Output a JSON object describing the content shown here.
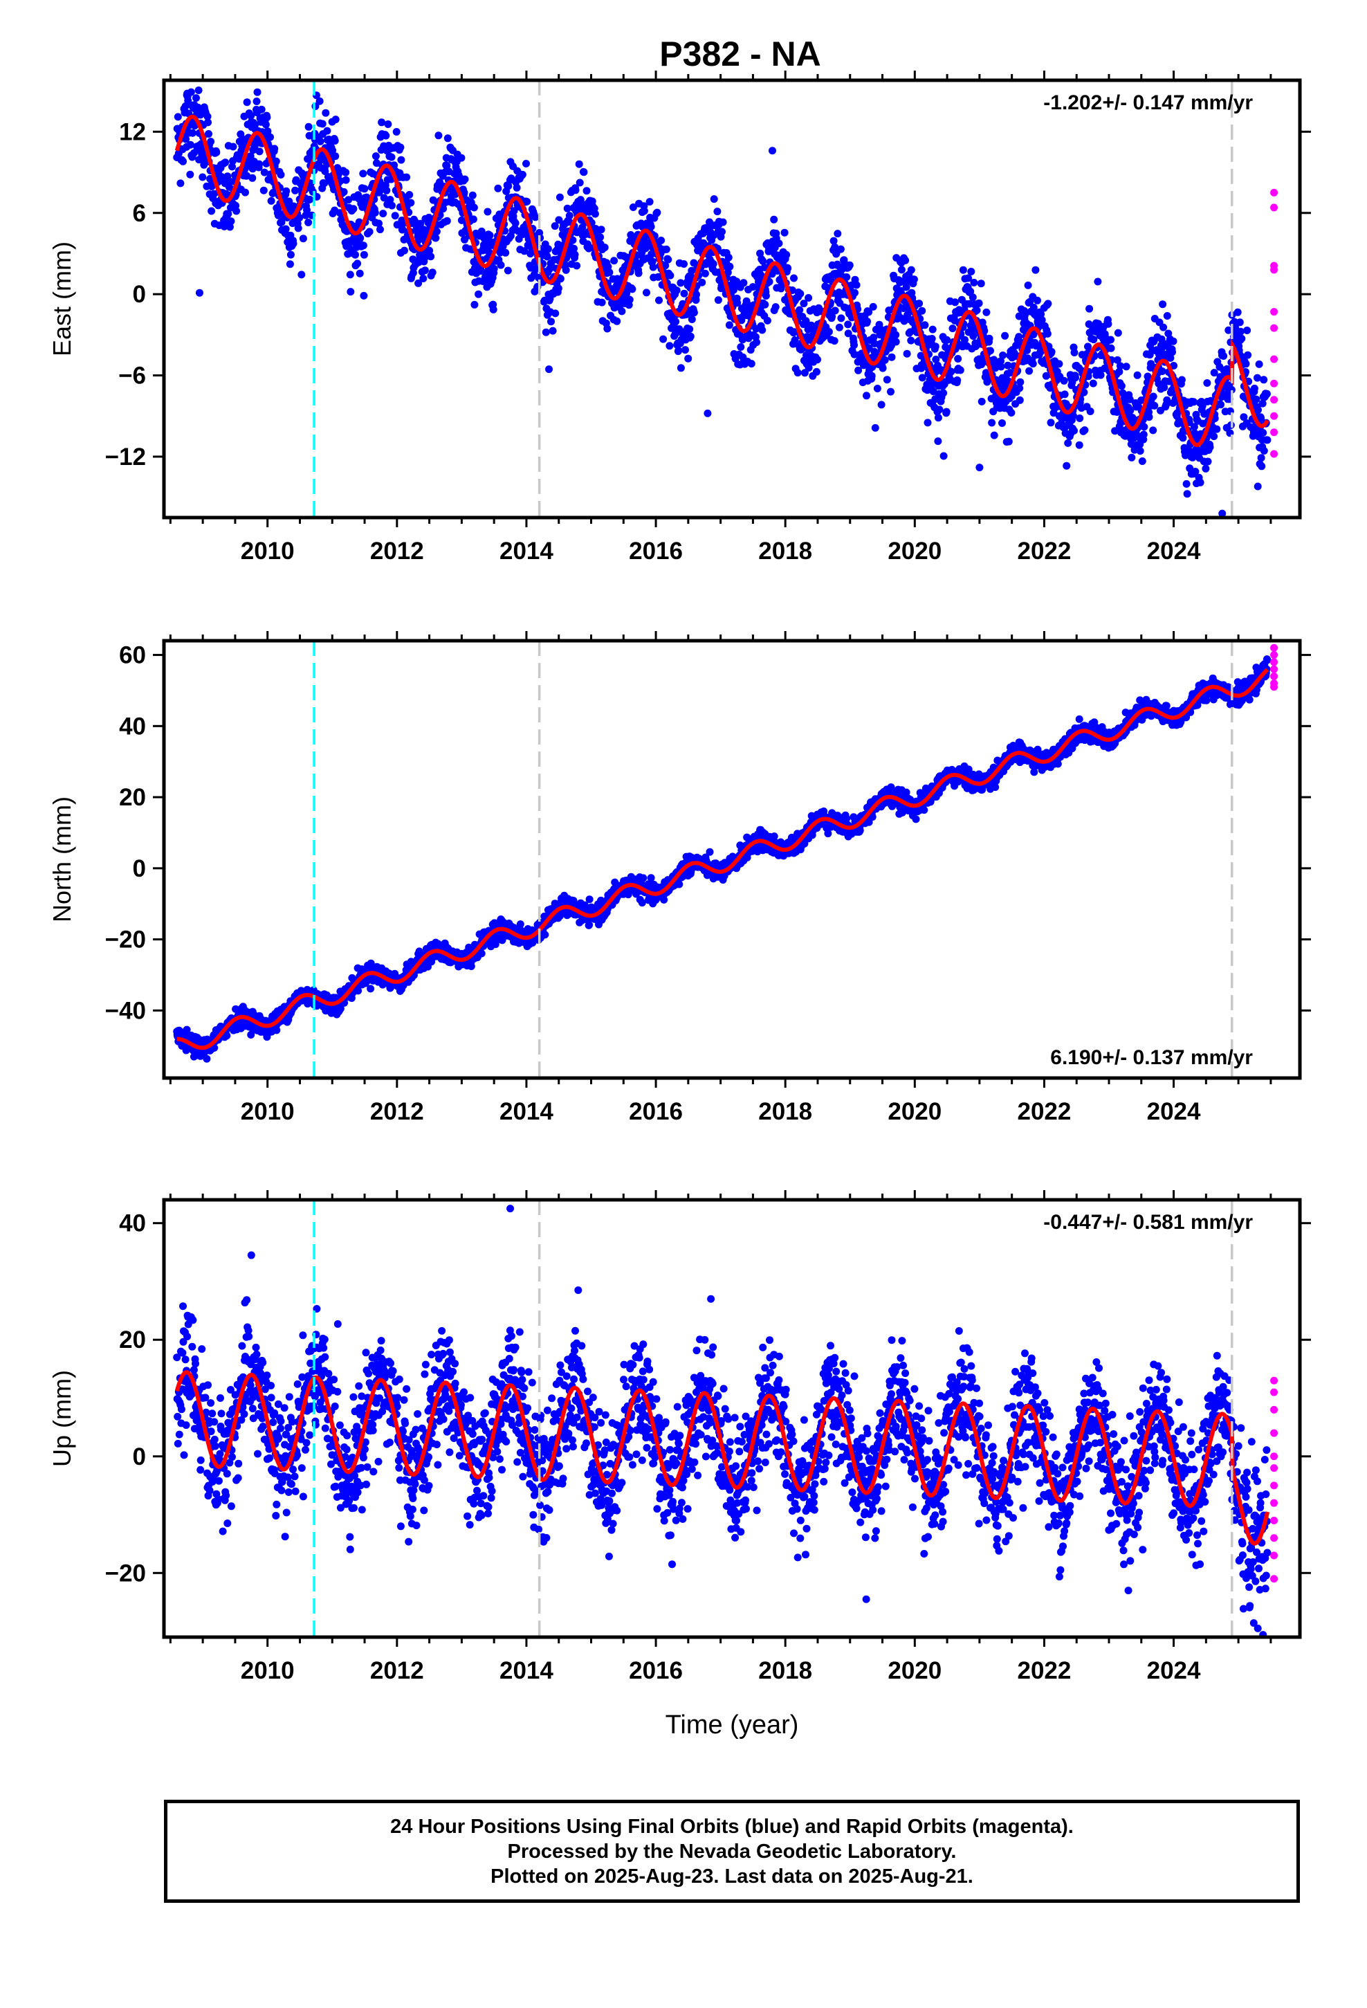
{
  "title": "P382 - NA",
  "xlabel": "Time (year)",
  "footer": {
    "lines": [
      "24 Hour Positions Using Final Orbits (blue) and Rapid Orbits (magenta).",
      "Processed by the Nevada Geodetic Laboratory.",
      "Plotted on 2025-Aug-23. Last data on 2025-Aug-21."
    ]
  },
  "colors": {
    "final_points": "#0000ff",
    "rapid_points": "#ff00ff",
    "model_curve": "#ff0000",
    "event_line": "#00ffff",
    "antenna_change_line": "#c8c8c8",
    "frame": "#000000"
  },
  "chart_data": [
    {
      "type": "scatter",
      "id": "east",
      "ylabel": "East (mm)",
      "rate_text": "-1.202+/- 0.147 mm/yr",
      "rate_position": "top-right",
      "xlim": [
        2008.4,
        2025.95
      ],
      "ylim": [
        -16.5,
        15.8
      ],
      "x_ticks": [
        2010,
        2012,
        2014,
        2016,
        2018,
        2020,
        2022,
        2024
      ],
      "y_ticks": [
        12,
        6,
        0,
        -6,
        -12
      ],
      "y_tick_labels": [
        "12",
        "6",
        "0",
        "−6",
        "−12"
      ],
      "event_lines": [
        {
          "x": 2010.72,
          "color": "cyan",
          "style": "dashed"
        }
      ],
      "equipment_lines": [
        {
          "x": 2014.2,
          "color": "gray",
          "style": "dashed"
        },
        {
          "x": 2024.9,
          "color": "gray",
          "style": "dashed"
        }
      ],
      "data_span": [
        2008.6,
        2025.45
      ],
      "model": {
        "offset_at_2008_6": 10.6,
        "rate_mm_per_yr": -1.202,
        "annual_amplitude": 2.8,
        "annual_peak_phase": 0.85,
        "step_at_2024_9": 2.6
      },
      "scatter_sd": 1.6,
      "rapid_points": [
        {
          "x": 2025.55,
          "y": 7.5
        },
        {
          "x": 2025.55,
          "y": 6.4
        },
        {
          "x": 2025.55,
          "y": 2.1
        },
        {
          "x": 2025.55,
          "y": 1.8
        },
        {
          "x": 2025.55,
          "y": -1.3
        },
        {
          "x": 2025.55,
          "y": -2.5
        },
        {
          "x": 2025.55,
          "y": -4.8
        },
        {
          "x": 2025.55,
          "y": -6.6
        },
        {
          "x": 2025.55,
          "y": -7.8
        },
        {
          "x": 2025.55,
          "y": -9.0
        },
        {
          "x": 2025.55,
          "y": -10.2
        },
        {
          "x": 2025.55,
          "y": -11.8
        }
      ],
      "outliers": [
        {
          "x": 2008.95,
          "y": 0.1
        },
        {
          "x": 2017.8,
          "y": 10.6
        },
        {
          "x": 2016.8,
          "y": -8.8
        },
        {
          "x": 2024.75,
          "y": -16.2
        },
        {
          "x": 2025.3,
          "y": -14.2
        },
        {
          "x": 2021.0,
          "y": -12.8
        }
      ]
    },
    {
      "type": "scatter",
      "id": "north",
      "ylabel": "North (mm)",
      "rate_text": "6.190+/- 0.137 mm/yr",
      "rate_position": "bottom-right",
      "xlim": [
        2008.4,
        2025.95
      ],
      "ylim": [
        -59,
        64
      ],
      "x_ticks": [
        2010,
        2012,
        2014,
        2016,
        2018,
        2020,
        2022,
        2024
      ],
      "y_ticks": [
        60,
        40,
        20,
        0,
        -20,
        -40
      ],
      "y_tick_labels": [
        "60",
        "40",
        "20",
        "0",
        "−20",
        "−40"
      ],
      "event_lines": [
        {
          "x": 2010.72,
          "color": "cyan",
          "style": "dashed"
        }
      ],
      "equipment_lines": [
        {
          "x": 2014.2,
          "color": "gray",
          "style": "dashed"
        },
        {
          "x": 2024.9,
          "color": "gray",
          "style": "dashed"
        }
      ],
      "data_span": [
        2008.6,
        2025.45
      ],
      "model": {
        "offset_at_2008_6": -50.5,
        "rate_mm_per_yr": 6.19,
        "annual_amplitude": 2.6,
        "annual_peak_phase": 0.55,
        "step_at_2024_9": 0
      },
      "scatter_sd": 1.3,
      "rapid_points": [
        {
          "x": 2025.55,
          "y": 62
        },
        {
          "x": 2025.55,
          "y": 60
        },
        {
          "x": 2025.55,
          "y": 58
        },
        {
          "x": 2025.55,
          "y": 56
        },
        {
          "x": 2025.55,
          "y": 54
        },
        {
          "x": 2025.55,
          "y": 52
        },
        {
          "x": 2025.55,
          "y": 51
        }
      ],
      "outliers": []
    },
    {
      "type": "scatter",
      "id": "up",
      "ylabel": "Up (mm)",
      "rate_text": "-0.447+/- 0.581 mm/yr",
      "rate_position": "top-right",
      "xlim": [
        2008.4,
        2025.95
      ],
      "ylim": [
        -31,
        44
      ],
      "x_ticks": [
        2010,
        2012,
        2014,
        2016,
        2018,
        2020,
        2022,
        2024
      ],
      "y_ticks": [
        40,
        20,
        0,
        -20
      ],
      "y_tick_labels": [
        "40",
        "20",
        "0",
        "−20"
      ],
      "event_lines": [
        {
          "x": 2010.72,
          "color": "cyan",
          "style": "dashed"
        }
      ],
      "equipment_lines": [
        {
          "x": 2014.2,
          "color": "gray",
          "style": "dashed"
        },
        {
          "x": 2024.9,
          "color": "gray",
          "style": "dashed"
        }
      ],
      "data_span": [
        2008.6,
        2025.45
      ],
      "model": {
        "offset_at_2008_6": 6.5,
        "rate_mm_per_yr": -0.447,
        "annual_amplitude": 8.0,
        "annual_peak_phase": 0.75,
        "step_at_2024_9": -6.0
      },
      "scatter_sd": 5.0,
      "rapid_points": [
        {
          "x": 2025.55,
          "y": 13
        },
        {
          "x": 2025.55,
          "y": 11
        },
        {
          "x": 2025.55,
          "y": 8
        },
        {
          "x": 2025.55,
          "y": 4
        },
        {
          "x": 2025.55,
          "y": 0
        },
        {
          "x": 2025.55,
          "y": -2
        },
        {
          "x": 2025.55,
          "y": -5
        },
        {
          "x": 2025.55,
          "y": -8
        },
        {
          "x": 2025.55,
          "y": -11
        },
        {
          "x": 2025.55,
          "y": -14
        },
        {
          "x": 2025.55,
          "y": -17
        },
        {
          "x": 2025.55,
          "y": -21
        }
      ],
      "outliers": [
        {
          "x": 2013.75,
          "y": 42.5
        },
        {
          "x": 2009.75,
          "y": 34.5
        },
        {
          "x": 2016.85,
          "y": 27
        },
        {
          "x": 2014.8,
          "y": 28.5
        },
        {
          "x": 2025.3,
          "y": -29.5
        },
        {
          "x": 2019.25,
          "y": -24.5
        },
        {
          "x": 2023.3,
          "y": -23
        }
      ]
    }
  ]
}
